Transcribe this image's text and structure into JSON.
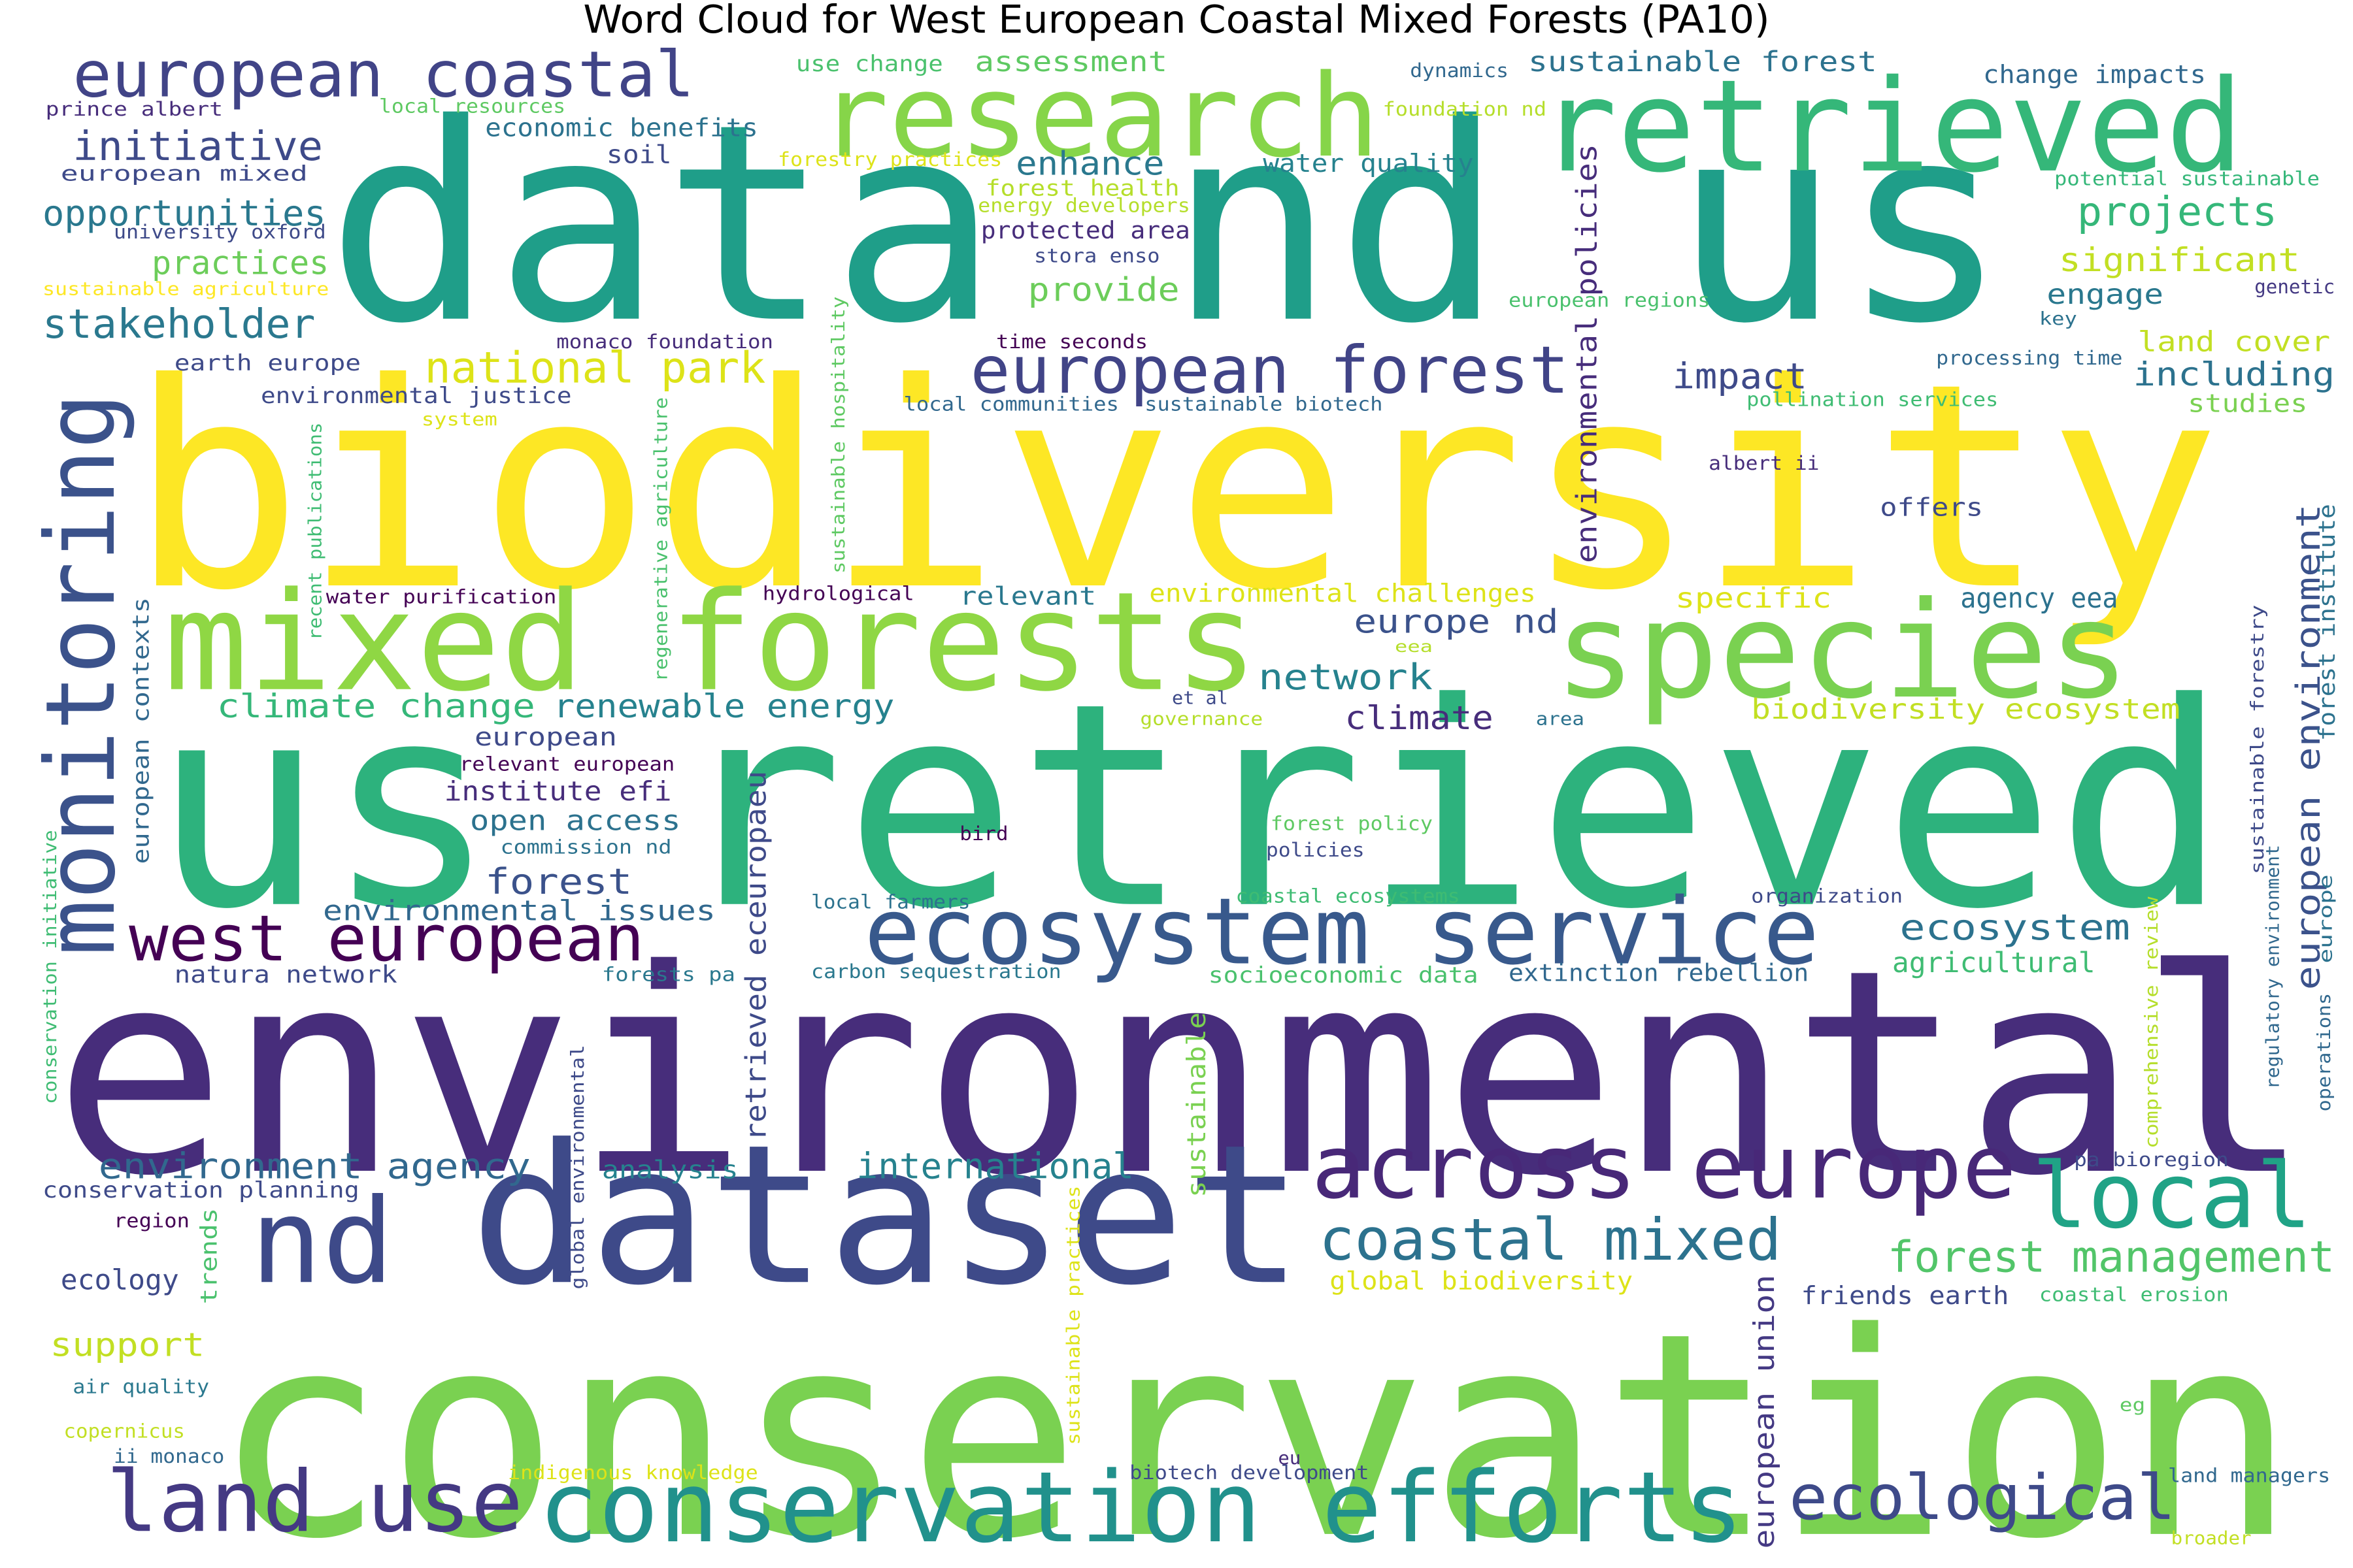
{
  "title": "Word Cloud for West European Coastal Mixed Forests (PA10)",
  "words": [
    {
      "text": "biodiversity",
      "color": "#fde725"
    },
    {
      "text": "environmental",
      "color": "#472d7b"
    },
    {
      "text": "conservation",
      "color": "#7ad151"
    },
    {
      "text": "us retrieved",
      "color": "#2db27d"
    },
    {
      "text": "data nd us",
      "color": "#1f9e89"
    },
    {
      "text": "dataset",
      "color": "#3e4a89"
    },
    {
      "text": "research",
      "color": "#86d549"
    },
    {
      "text": "retrieved",
      "color": "#35b779"
    },
    {
      "text": "mixed forests",
      "color": "#8fd744"
    },
    {
      "text": "species",
      "color": "#7ad151"
    },
    {
      "text": "monitoring",
      "color": "#3b528b"
    },
    {
      "text": "west european",
      "color": "#440154"
    },
    {
      "text": "ecosystem service",
      "color": "#38598c"
    },
    {
      "text": "across europe",
      "color": "#482878"
    },
    {
      "text": "local",
      "color": "#20a386"
    },
    {
      "text": "nd",
      "color": "#3e4a89"
    },
    {
      "text": "land use",
      "color": "#443983"
    },
    {
      "text": "conservation efforts",
      "color": "#21918c"
    },
    {
      "text": "ecological",
      "color": "#3e4a89"
    },
    {
      "text": "coastal mixed",
      "color": "#2c728e"
    },
    {
      "text": "forest management",
      "color": "#52c569"
    },
    {
      "text": "european forest",
      "color": "#414487"
    },
    {
      "text": "national park",
      "color": "#dde318"
    },
    {
      "text": "european coastal",
      "color": "#414487"
    },
    {
      "text": "initiative",
      "color": "#3e4a89"
    },
    {
      "text": "opportunities",
      "color": "#2a788e"
    },
    {
      "text": "practices",
      "color": "#6ccd5a"
    },
    {
      "text": "stakeholder",
      "color": "#2a788e"
    },
    {
      "text": "european mixed",
      "color": "#3e4a89"
    },
    {
      "text": "use change",
      "color": "#4ac16d"
    },
    {
      "text": "assessment",
      "color": "#5ec962"
    },
    {
      "text": "dynamics",
      "color": "#31688e"
    },
    {
      "text": "sustainable forest",
      "color": "#2c728e"
    },
    {
      "text": "change impacts",
      "color": "#31688e"
    },
    {
      "text": "prince albert",
      "color": "#472d7b"
    },
    {
      "text": "local resources",
      "color": "#5ec962"
    },
    {
      "text": "foundation nd",
      "color": "#b5de2b"
    },
    {
      "text": "economic benefits",
      "color": "#2c728e"
    },
    {
      "text": "soil",
      "color": "#3e4a89"
    },
    {
      "text": "enhance",
      "color": "#2a788e"
    },
    {
      "text": "water quality",
      "color": "#26828e"
    },
    {
      "text": "forestry practices",
      "color": "#dde318"
    },
    {
      "text": "forest health",
      "color": "#b5de2b"
    },
    {
      "text": "energy developers",
      "color": "#b5de2b"
    },
    {
      "text": "protected area",
      "color": "#472d7b"
    },
    {
      "text": "stora enso",
      "color": "#3e4a89"
    },
    {
      "text": "provide",
      "color": "#6ccd5a"
    },
    {
      "text": "time seconds",
      "color": "#440154"
    },
    {
      "text": "university oxford",
      "color": "#3e4a89"
    },
    {
      "text": "sustainable agriculture",
      "color": "#fde725"
    },
    {
      "text": "earth europe",
      "color": "#3e4a89"
    },
    {
      "text": "monaco foundation",
      "color": "#472d7b"
    },
    {
      "text": "environmental justice",
      "color": "#3e4a89"
    },
    {
      "text": "system",
      "color": "#dde318"
    },
    {
      "text": "local communities",
      "color": "#31688e"
    },
    {
      "text": "sustainable biotech",
      "color": "#31688e"
    },
    {
      "text": "projects",
      "color": "#35b779"
    },
    {
      "text": "significant",
      "color": "#c2df23"
    },
    {
      "text": "potential sustainable",
      "color": "#35b779"
    },
    {
      "text": "genetic",
      "color": "#443983"
    },
    {
      "text": "engage",
      "color": "#2a788e"
    },
    {
      "text": "key",
      "color": "#2c728e"
    },
    {
      "text": "european regions",
      "color": "#4ac16d"
    },
    {
      "text": "land cover",
      "color": "#c2df23"
    },
    {
      "text": "processing time",
      "color": "#31688e"
    },
    {
      "text": "including",
      "color": "#2c728e"
    },
    {
      "text": "impact",
      "color": "#3e4a89"
    },
    {
      "text": "pollination services",
      "color": "#3fbc73"
    },
    {
      "text": "studies",
      "color": "#7ad151"
    },
    {
      "text": "albert ii",
      "color": "#472d7b"
    },
    {
      "text": "offers",
      "color": "#3e4a89"
    },
    {
      "text": "water purification",
      "color": "#440154"
    },
    {
      "text": "hydrological",
      "color": "#440154"
    },
    {
      "text": "relevant",
      "color": "#2a788e"
    },
    {
      "text": "environmental challenges",
      "color": "#dde318"
    },
    {
      "text": "specific",
      "color": "#dde318"
    },
    {
      "text": "agency eea",
      "color": "#2c728e"
    },
    {
      "text": "europe nd",
      "color": "#3b528b"
    },
    {
      "text": "eea",
      "color": "#b5de2b"
    },
    {
      "text": "network",
      "color": "#26828e"
    },
    {
      "text": "climate change",
      "color": "#35b779"
    },
    {
      "text": "renewable energy",
      "color": "#26828e"
    },
    {
      "text": "et al",
      "color": "#3e4a89"
    },
    {
      "text": "governance",
      "color": "#b5de2b"
    },
    {
      "text": "climate",
      "color": "#472d7b"
    },
    {
      "text": "area",
      "color": "#2c728e"
    },
    {
      "text": "biodiversity ecosystem",
      "color": "#c2df23"
    },
    {
      "text": "european",
      "color": "#3e4a89"
    },
    {
      "text": "relevant european",
      "color": "#440154"
    },
    {
      "text": "institute efi",
      "color": "#472d7b"
    },
    {
      "text": "open access",
      "color": "#2c728e"
    },
    {
      "text": "forest policy",
      "color": "#5ec962"
    },
    {
      "text": "commission nd",
      "color": "#2c728e"
    },
    {
      "text": "bird",
      "color": "#440154"
    },
    {
      "text": "policies",
      "color": "#3e4a89"
    },
    {
      "text": "forest",
      "color": "#3b528b"
    },
    {
      "text": "environmental issues",
      "color": "#31688e"
    },
    {
      "text": "local farmers",
      "color": "#2c728e"
    },
    {
      "text": "coastal ecosystems",
      "color": "#3fbc73"
    },
    {
      "text": "organization",
      "color": "#3e4a89"
    },
    {
      "text": "ecosystem",
      "color": "#2c728e"
    },
    {
      "text": "agricultural",
      "color": "#3fbc73"
    },
    {
      "text": "natura network",
      "color": "#3e4a89"
    },
    {
      "text": "forests pa",
      "color": "#2a788e"
    },
    {
      "text": "carbon sequestration",
      "color": "#2a788e"
    },
    {
      "text": "socioeconomic data",
      "color": "#4ac16d"
    },
    {
      "text": "extinction rebellion",
      "color": "#31688e"
    },
    {
      "text": "environment agency",
      "color": "#31688e"
    },
    {
      "text": "analysis",
      "color": "#26828e"
    },
    {
      "text": "international",
      "color": "#26828e"
    },
    {
      "text": "pa bioregion",
      "color": "#3e4a89"
    },
    {
      "text": "conservation planning",
      "color": "#3e4a89"
    },
    {
      "text": "region",
      "color": "#440154"
    },
    {
      "text": "ecology",
      "color": "#3e4a89"
    },
    {
      "text": "global biodiversity",
      "color": "#dde318"
    },
    {
      "text": "friends earth",
      "color": "#3e4a89"
    },
    {
      "text": "coastal erosion",
      "color": "#3fbc73"
    },
    {
      "text": "support",
      "color": "#c2df23"
    },
    {
      "text": "air quality",
      "color": "#2a788e"
    },
    {
      "text": "copernicus",
      "color": "#c2df23"
    },
    {
      "text": "ii monaco",
      "color": "#31688e"
    },
    {
      "text": "indigenous knowledge",
      "color": "#dde318"
    },
    {
      "text": "biotech development",
      "color": "#3e4a89"
    },
    {
      "text": "eu",
      "color": "#472d7b"
    },
    {
      "text": "eg",
      "color": "#5ec962"
    },
    {
      "text": "land managers",
      "color": "#31688e"
    },
    {
      "text": "broader",
      "color": "#c2df23"
    },
    {
      "text": "environmental policies",
      "color": "#472d7b"
    },
    {
      "text": "sustainable hospitality",
      "color": "#5ec962"
    },
    {
      "text": "regenerative agriculture",
      "color": "#4ac16d"
    },
    {
      "text": "recent publications",
      "color": "#3fbc73"
    },
    {
      "text": "european contexts",
      "color": "#31688e"
    },
    {
      "text": "conservation initiative",
      "color": "#3fbc73"
    },
    {
      "text": "retrieved eceuropaeu",
      "color": "#3e4a89"
    },
    {
      "text": "global environmental",
      "color": "#3e4a89"
    },
    {
      "text": "trends",
      "color": "#4ac16d"
    },
    {
      "text": "sustainable practices",
      "color": "#dde318"
    },
    {
      "text": "sustainable",
      "color": "#7ad151"
    },
    {
      "text": "european union",
      "color": "#443983"
    },
    {
      "text": "european environment",
      "color": "#3b528b"
    },
    {
      "text": "forest institute",
      "color": "#2c728e"
    },
    {
      "text": "sustainable forestry",
      "color": "#3e4a89"
    },
    {
      "text": "regulatory environment",
      "color": "#31688e"
    },
    {
      "text": "comprehensive review",
      "color": "#b5de2b"
    },
    {
      "text": "europe",
      "color": "#2c728e"
    },
    {
      "text": "operations",
      "color": "#31688e"
    }
  ]
}
